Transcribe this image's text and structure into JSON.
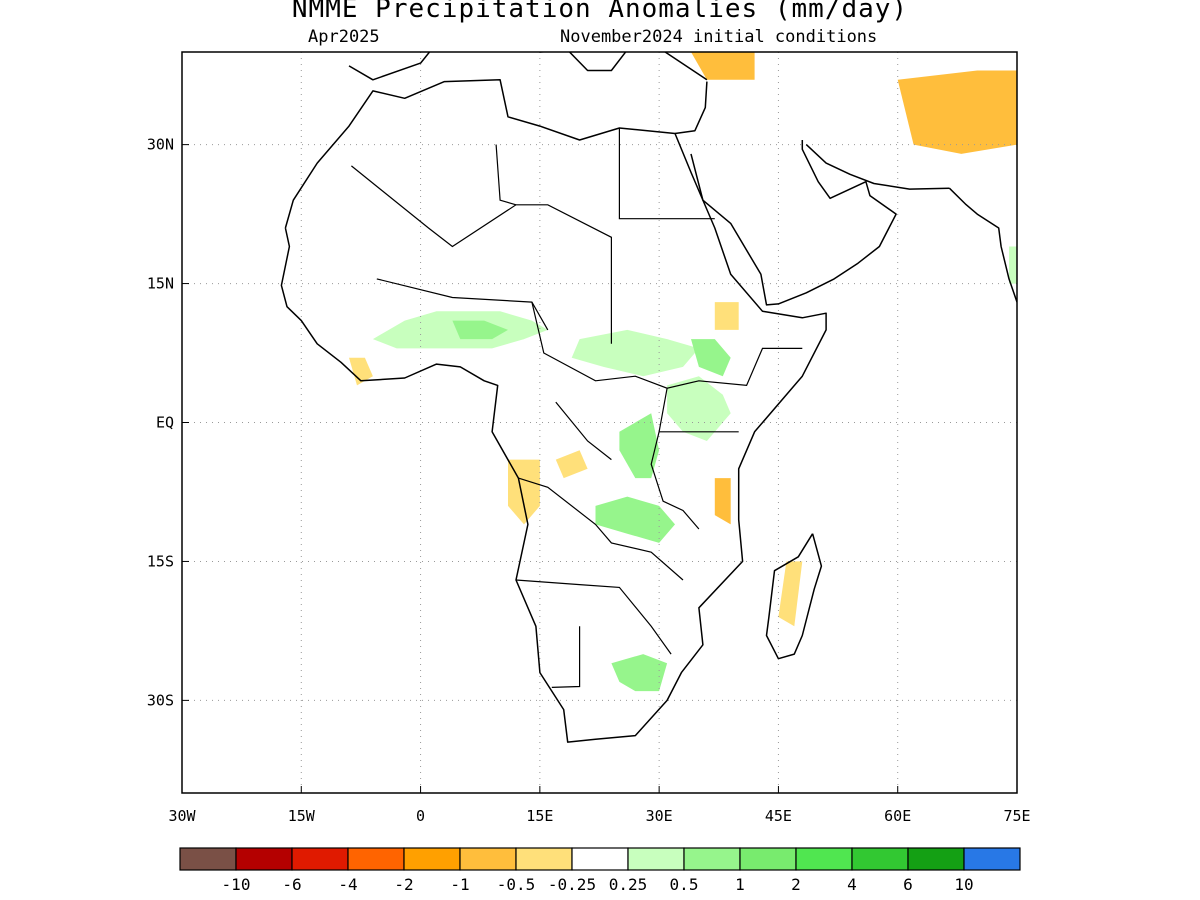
{
  "title": "NMME Precipitation Anomalies (mm/day)",
  "subtitle_left": "Apr2025",
  "subtitle_right": "November2024 initial conditions",
  "map": {
    "lon_range": [
      -30,
      75
    ],
    "lat_range": [
      -40,
      40
    ],
    "x_ticks": [
      {
        "lon": -30,
        "label": "30W"
      },
      {
        "lon": -15,
        "label": "15W"
      },
      {
        "lon": 0,
        "label": "0"
      },
      {
        "lon": 15,
        "label": "15E"
      },
      {
        "lon": 30,
        "label": "30E"
      },
      {
        "lon": 45,
        "label": "45E"
      },
      {
        "lon": 60,
        "label": "60E"
      },
      {
        "lon": 75,
        "label": "75E"
      }
    ],
    "y_ticks": [
      {
        "lat": 30,
        "label": "30N"
      },
      {
        "lat": 15,
        "label": "15N"
      },
      {
        "lat": 0,
        "label": "EQ"
      },
      {
        "lat": -15,
        "label": "15S"
      },
      {
        "lat": -30,
        "label": "30S"
      }
    ],
    "grid": true,
    "land_outline_color": "#000000"
  },
  "anomaly_regions": [
    {
      "name": "west-africa-sahel",
      "level": 0.25,
      "polygon": [
        [
          -6,
          9
        ],
        [
          -2,
          11
        ],
        [
          2,
          12
        ],
        [
          6,
          12
        ],
        [
          10,
          12
        ],
        [
          14,
          11
        ],
        [
          16,
          10
        ],
        [
          13,
          9
        ],
        [
          9,
          8
        ],
        [
          5,
          8
        ],
        [
          1,
          8
        ],
        [
          -3,
          8
        ]
      ]
    },
    {
      "name": "central-sahel",
      "level": 0.5,
      "polygon": [
        [
          4,
          11
        ],
        [
          8,
          11
        ],
        [
          11,
          10
        ],
        [
          9,
          9
        ],
        [
          5,
          9
        ]
      ]
    },
    {
      "name": "south-sudan",
      "level": 0.25,
      "polygon": [
        [
          20,
          9
        ],
        [
          26,
          10
        ],
        [
          31,
          9
        ],
        [
          35,
          8
        ],
        [
          33,
          6
        ],
        [
          28,
          5
        ],
        [
          23,
          6
        ],
        [
          19,
          7
        ]
      ]
    },
    {
      "name": "ethiopia",
      "level": 0.5,
      "polygon": [
        [
          34,
          9
        ],
        [
          37,
          9
        ],
        [
          39,
          7
        ],
        [
          38,
          5
        ],
        [
          35,
          6
        ]
      ]
    },
    {
      "name": "east-africa",
      "level": 0.25,
      "polygon": [
        [
          31,
          4
        ],
        [
          35,
          5
        ],
        [
          38,
          3
        ],
        [
          39,
          1
        ],
        [
          36,
          -2
        ],
        [
          33,
          -1
        ],
        [
          31,
          1
        ]
      ]
    },
    {
      "name": "congo-basin",
      "level": 0.5,
      "polygon": [
        [
          25,
          -1
        ],
        [
          29,
          1
        ],
        [
          30,
          -3
        ],
        [
          29,
          -6
        ],
        [
          27,
          -6
        ],
        [
          25,
          -3
        ]
      ]
    },
    {
      "name": "zambia",
      "level": 0.5,
      "polygon": [
        [
          22,
          -9
        ],
        [
          26,
          -8
        ],
        [
          30,
          -9
        ],
        [
          32,
          -11
        ],
        [
          30,
          -13
        ],
        [
          26,
          -12
        ],
        [
          22,
          -11
        ]
      ]
    },
    {
      "name": "southern-africa",
      "level": 0.5,
      "polygon": [
        [
          24,
          -26
        ],
        [
          28,
          -25
        ],
        [
          31,
          -26
        ],
        [
          30,
          -29
        ],
        [
          27,
          -29
        ],
        [
          25,
          -28
        ]
      ]
    },
    {
      "name": "arabia-india-edge",
      "level": 0.25,
      "polygon": [
        [
          74,
          19
        ],
        [
          75,
          19
        ],
        [
          75,
          15
        ],
        [
          74,
          15
        ]
      ]
    },
    {
      "name": "angola-coast",
      "level": -0.25,
      "polygon": [
        [
          11,
          -4
        ],
        [
          15,
          -4
        ],
        [
          15,
          -9
        ],
        [
          13,
          -11
        ],
        [
          11,
          -9
        ]
      ]
    },
    {
      "name": "central-africa-dry",
      "level": -0.25,
      "polygon": [
        [
          17,
          -4
        ],
        [
          20,
          -3
        ],
        [
          21,
          -5
        ],
        [
          18,
          -6
        ]
      ]
    },
    {
      "name": "tanzania-coast",
      "level": -0.5,
      "polygon": [
        [
          37,
          -6
        ],
        [
          39,
          -6
        ],
        [
          39,
          -11
        ],
        [
          37,
          -10
        ]
      ]
    },
    {
      "name": "madagascar",
      "level": -0.25,
      "polygon": [
        [
          46,
          -15
        ],
        [
          48,
          -15
        ],
        [
          47,
          -22
        ],
        [
          45,
          -21
        ]
      ]
    },
    {
      "name": "guinea-coast",
      "level": -0.25,
      "polygon": [
        [
          -9,
          7
        ],
        [
          -7,
          7
        ],
        [
          -6,
          5
        ],
        [
          -8,
          4
        ]
      ]
    },
    {
      "name": "ethiopia-dry",
      "level": -0.25,
      "polygon": [
        [
          37,
          13
        ],
        [
          40,
          13
        ],
        [
          40,
          10
        ],
        [
          37,
          10
        ]
      ]
    },
    {
      "name": "middle-east",
      "level": -0.5,
      "polygon": [
        [
          60,
          37
        ],
        [
          70,
          38
        ],
        [
          75,
          38
        ],
        [
          75,
          30
        ],
        [
          68,
          29
        ],
        [
          62,
          30
        ]
      ]
    },
    {
      "name": "turkey-edge",
      "level": -0.5,
      "polygon": [
        [
          34,
          40
        ],
        [
          42,
          40
        ],
        [
          42,
          37
        ],
        [
          36,
          37
        ]
      ]
    }
  ],
  "colorbar": {
    "colors": [
      "#7a5046",
      "#b40000",
      "#e01a00",
      "#ff6400",
      "#ffa000",
      "#ffbe3c",
      "#ffe07a",
      "#ffffff",
      "#c8ffbe",
      "#96f58c",
      "#78eb6e",
      "#50e650",
      "#32c832",
      "#14a014",
      "#2878e6"
    ],
    "labels": [
      "-10",
      "-6",
      "-4",
      "-2",
      "-1",
      "-0.5",
      "-0.25",
      "0.25",
      "0.5",
      "1",
      "2",
      "4",
      "6",
      "10"
    ]
  }
}
